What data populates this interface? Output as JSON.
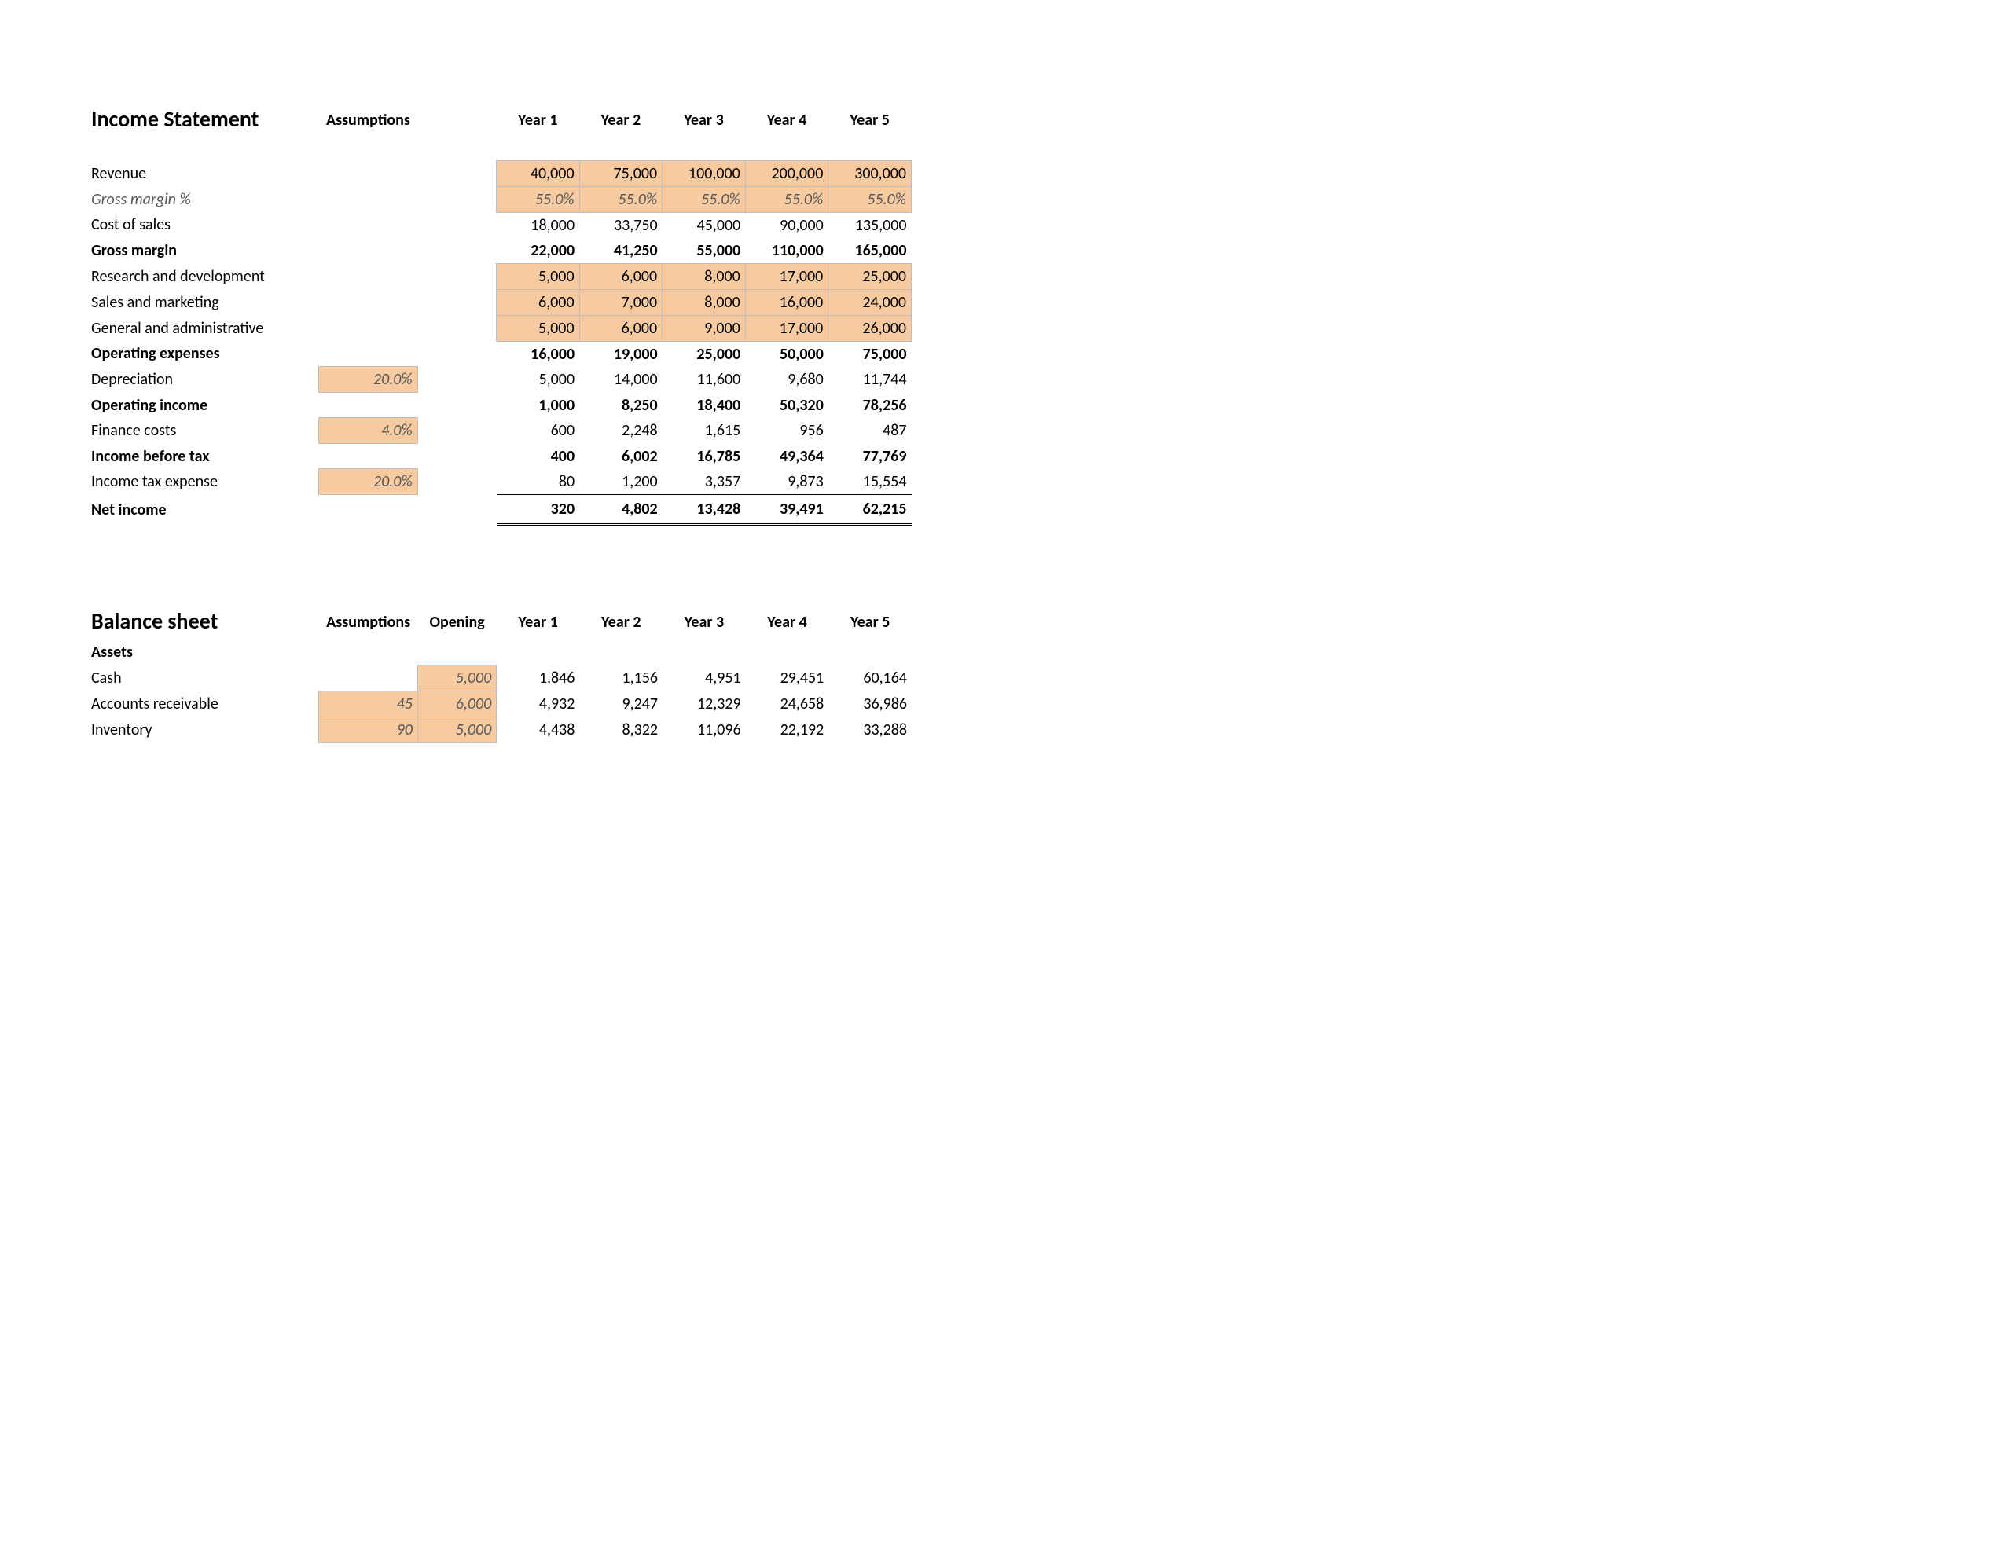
{
  "layout": {
    "highlight_bg": "#f7caa0",
    "highlight_border": "#bfbfbf",
    "italic_color": "#595959",
    "font_family": "Calibri",
    "base_fontsize": 20,
    "title_fontsize": 28
  },
  "income": {
    "title": "Income Statement",
    "headers": {
      "assumptions": "Assumptions",
      "years": [
        "Year 1",
        "Year 2",
        "Year 3",
        "Year 4",
        "Year 5"
      ]
    },
    "rows": [
      {
        "label": "Revenue",
        "assumption": "",
        "values": [
          "40,000",
          "75,000",
          "100,000",
          "200,000",
          "300,000"
        ],
        "bold": false,
        "italic": false,
        "highlight_values": true
      },
      {
        "label": "Gross margin %",
        "assumption": "",
        "values": [
          "55.0%",
          "55.0%",
          "55.0%",
          "55.0%",
          "55.0%"
        ],
        "bold": false,
        "italic": true,
        "highlight_values": true
      },
      {
        "label": "Cost of sales",
        "assumption": "",
        "values": [
          "18,000",
          "33,750",
          "45,000",
          "90,000",
          "135,000"
        ],
        "bold": false,
        "italic": false,
        "highlight_values": false
      },
      {
        "label": "Gross margin",
        "assumption": "",
        "values": [
          "22,000",
          "41,250",
          "55,000",
          "110,000",
          "165,000"
        ],
        "bold": true,
        "italic": false,
        "highlight_values": false
      },
      {
        "label": "Research and development",
        "assumption": "",
        "values": [
          "5,000",
          "6,000",
          "8,000",
          "17,000",
          "25,000"
        ],
        "bold": false,
        "italic": false,
        "highlight_values": true
      },
      {
        "label": "Sales and marketing",
        "assumption": "",
        "values": [
          "6,000",
          "7,000",
          "8,000",
          "16,000",
          "24,000"
        ],
        "bold": false,
        "italic": false,
        "highlight_values": true
      },
      {
        "label": "General and administrative",
        "assumption": "",
        "values": [
          "5,000",
          "6,000",
          "9,000",
          "17,000",
          "26,000"
        ],
        "bold": false,
        "italic": false,
        "highlight_values": true
      },
      {
        "label": "Operating expenses",
        "assumption": "",
        "values": [
          "16,000",
          "19,000",
          "25,000",
          "50,000",
          "75,000"
        ],
        "bold": true,
        "italic": false,
        "highlight_values": false
      },
      {
        "label": "Depreciation",
        "assumption": "20.0%",
        "values": [
          "5,000",
          "14,000",
          "11,600",
          "9,680",
          "11,744"
        ],
        "bold": false,
        "italic": false,
        "highlight_values": false,
        "highlight_assumption": true
      },
      {
        "label": "Operating income",
        "assumption": "",
        "values": [
          "1,000",
          "8,250",
          "18,400",
          "50,320",
          "78,256"
        ],
        "bold": true,
        "italic": false,
        "highlight_values": false
      },
      {
        "label": "Finance costs",
        "assumption": "4.0%",
        "values": [
          "600",
          "2,248",
          "1,615",
          "956",
          "487"
        ],
        "bold": false,
        "italic": false,
        "highlight_values": false,
        "highlight_assumption": true
      },
      {
        "label": "Income before tax",
        "assumption": "",
        "values": [
          "400",
          "6,002",
          "16,785",
          "49,364",
          "77,769"
        ],
        "bold": true,
        "italic": false,
        "highlight_values": false
      },
      {
        "label": "Income tax expense",
        "assumption": "20.0%",
        "values": [
          "80",
          "1,200",
          "3,357",
          "9,873",
          "15,554"
        ],
        "bold": false,
        "italic": false,
        "highlight_values": false,
        "highlight_assumption": true
      },
      {
        "label": "Net income",
        "assumption": "",
        "values": [
          "320",
          "4,802",
          "13,428",
          "39,491",
          "62,215"
        ],
        "bold": true,
        "italic": false,
        "highlight_values": false,
        "net": true
      }
    ]
  },
  "balance": {
    "title": "Balance sheet",
    "headers": {
      "assumptions": "Assumptions",
      "opening": "Opening",
      "years": [
        "Year 1",
        "Year 2",
        "Year 3",
        "Year 4",
        "Year 5"
      ]
    },
    "subheader": "Assets",
    "rows": [
      {
        "label": "Cash",
        "assumption": "",
        "opening": "5,000",
        "values": [
          "1,846",
          "1,156",
          "4,951",
          "29,451",
          "60,164"
        ],
        "highlight_assumption": false,
        "highlight_opening": true
      },
      {
        "label": "Accounts receivable",
        "assumption": "45",
        "opening": "6,000",
        "values": [
          "4,932",
          "9,247",
          "12,329",
          "24,658",
          "36,986"
        ],
        "highlight_assumption": true,
        "highlight_opening": true
      },
      {
        "label": "Inventory",
        "assumption": "90",
        "opening": "5,000",
        "values": [
          "4,438",
          "8,322",
          "11,096",
          "22,192",
          "33,288"
        ],
        "highlight_assumption": true,
        "highlight_opening": true
      }
    ]
  }
}
